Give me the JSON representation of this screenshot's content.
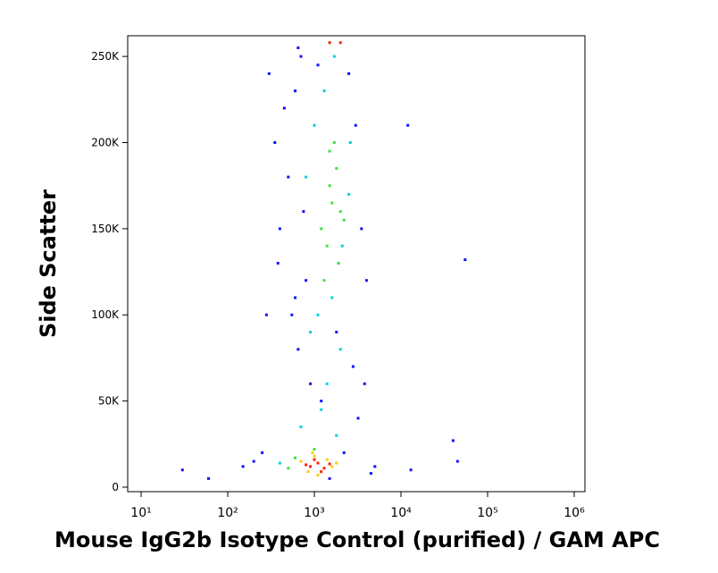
{
  "chart_data": {
    "type": "scatter",
    "x_label": "Mouse IgG2b Isotype Control (purified) / GAM APC",
    "y_label": "Side Scatter",
    "xscale": "log",
    "xlim": [
      7,
      1330000
    ],
    "ylim": [
      -2600,
      262000
    ],
    "xticks": [
      {
        "value": 10,
        "label": "10¹"
      },
      {
        "value": 100,
        "label": "10²"
      },
      {
        "value": 1000,
        "label": "10³"
      },
      {
        "value": 10000,
        "label": "10⁴"
      },
      {
        "value": 100000,
        "label": "10⁵"
      },
      {
        "value": 1000000,
        "label": "10⁶"
      }
    ],
    "yticks": [
      0,
      {
        "value": 50000,
        "label": "50K"
      },
      {
        "value": 100000,
        "label": "100K"
      },
      {
        "value": 150000,
        "label": "150K"
      },
      {
        "value": 200000,
        "label": "200K"
      },
      {
        "value": 250000,
        "label": "250K"
      }
    ],
    "series": [
      {
        "color": "#1010ff",
        "x": [
          300,
          350,
          450,
          600,
          500,
          700,
          2500,
          3000,
          3500,
          4000,
          400,
          800,
          550,
          650,
          900,
          1200,
          2800,
          3200,
          250,
          200,
          150,
          30,
          60,
          12000,
          55000,
          40000,
          13000,
          45000,
          5000,
          4500,
          650,
          750,
          1800,
          2200,
          3800,
          380,
          280,
          600,
          1100,
          1500
        ],
        "values": [
          240000,
          200000,
          220000,
          230000,
          180000,
          250000,
          240000,
          210000,
          150000,
          120000,
          150000,
          120000,
          100000,
          80000,
          60000,
          50000,
          70000,
          40000,
          20000,
          15000,
          12000,
          10000,
          5000,
          210000,
          132000,
          27000,
          10000,
          15000,
          12000,
          8000,
          255000,
          160000,
          90000,
          20000,
          60000,
          130000,
          100000,
          110000,
          245000,
          5000
        ]
      },
      {
        "color": "#00d0e0",
        "x": [
          1000,
          1300,
          2500,
          1100,
          1600,
          2100,
          900,
          800,
          1400,
          2600,
          1700,
          1200,
          400,
          2000,
          700,
          1800
        ],
        "values": [
          210000,
          230000,
          170000,
          100000,
          110000,
          140000,
          90000,
          180000,
          60000,
          200000,
          250000,
          45000,
          14000,
          80000,
          35000,
          30000
        ]
      },
      {
        "color": "#40e040",
        "x": [
          600,
          1500,
          1800,
          2000,
          1200,
          1400,
          1700,
          1600,
          1900,
          1300,
          1500,
          2200,
          500,
          1000
        ],
        "values": [
          17000,
          175000,
          185000,
          160000,
          150000,
          140000,
          200000,
          165000,
          130000,
          120000,
          195000,
          155000,
          11000,
          22000
        ]
      },
      {
        "color": "#ffcc00",
        "x": [
          700,
          850,
          1000,
          1400,
          1600,
          1800,
          1100,
          950
        ],
        "values": [
          15000,
          9000,
          18000,
          16000,
          12000,
          14000,
          7000,
          20000
        ]
      },
      {
        "color": "#ff2000",
        "x": [
          900,
          1100,
          1300,
          1000,
          1200,
          800,
          1500,
          1500,
          2000
        ],
        "values": [
          12000,
          14000,
          11000,
          16000,
          9000,
          13000,
          13500,
          258000,
          258000
        ]
      }
    ]
  }
}
